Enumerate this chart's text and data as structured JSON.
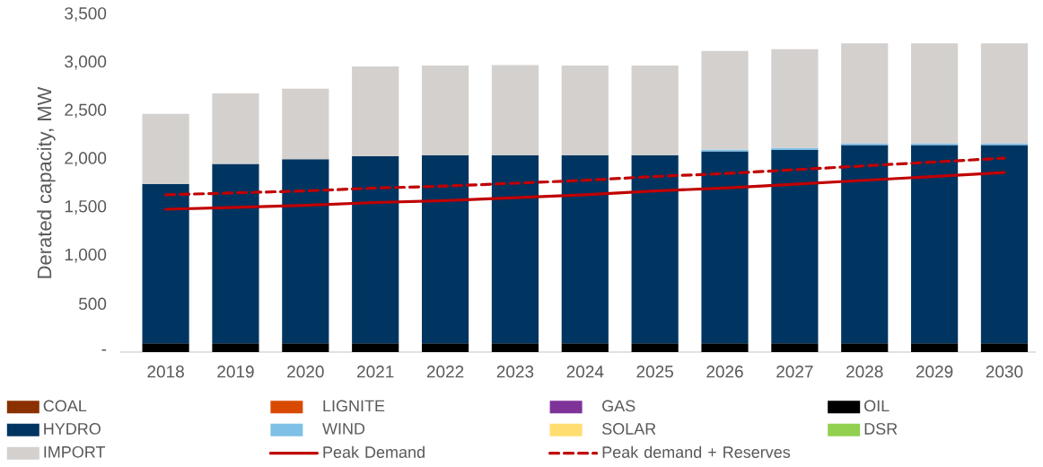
{
  "chart_data": {
    "type": "bar",
    "stacked": true,
    "ylabel": "Derated capacity, MW",
    "categories": [
      "2018",
      "2019",
      "2020",
      "2021",
      "2022",
      "2023",
      "2024",
      "2025",
      "2026",
      "2027",
      "2028",
      "2029",
      "2030"
    ],
    "ylim": [
      0,
      3500
    ],
    "yticks": [
      {
        "value": 0,
        "label": "-"
      },
      500,
      {
        "value": 1000,
        "label": "1,000"
      },
      {
        "value": 1500,
        "label": "1,500"
      },
      {
        "value": 2000,
        "label": "2,000"
      },
      {
        "value": 2500,
        "label": "2,500"
      },
      {
        "value": 3000,
        "label": "3,000"
      },
      {
        "value": 3500,
        "label": "3,500"
      }
    ],
    "legend": "bottom",
    "series": [
      {
        "name": "COAL",
        "color": "#8b3000",
        "values": [
          0,
          0,
          0,
          0,
          0,
          0,
          0,
          0,
          0,
          0,
          0,
          0,
          0
        ]
      },
      {
        "name": "LIGNITE",
        "color": "#d84a00",
        "values": [
          0,
          0,
          0,
          0,
          0,
          0,
          0,
          0,
          0,
          0,
          0,
          0,
          0
        ]
      },
      {
        "name": "GAS",
        "color": "#7f3399",
        "values": [
          0,
          0,
          0,
          0,
          0,
          0,
          0,
          0,
          0,
          0,
          0,
          0,
          0
        ]
      },
      {
        "name": "OIL",
        "color": "#000000",
        "values": [
          90,
          90,
          90,
          90,
          90,
          90,
          90,
          90,
          90,
          90,
          90,
          90,
          90
        ]
      },
      {
        "name": "HYDRO",
        "color": "#003562",
        "values": [
          1650,
          1860,
          1910,
          1940,
          1950,
          1950,
          1950,
          1950,
          1990,
          2005,
          2055,
          2055,
          2055
        ]
      },
      {
        "name": "WIND",
        "color": "#7ec0e6",
        "values": [
          0,
          0,
          0,
          0,
          0,
          0,
          0,
          0,
          20,
          20,
          20,
          20,
          20
        ]
      },
      {
        "name": "SOLAR",
        "color": "#ffdd71",
        "values": [
          0,
          0,
          0,
          0,
          0,
          0,
          0,
          0,
          0,
          0,
          0,
          0,
          0
        ]
      },
      {
        "name": "DSR",
        "color": "#92d050",
        "values": [
          0,
          0,
          0,
          0,
          0,
          0,
          0,
          0,
          0,
          0,
          0,
          0,
          0
        ]
      },
      {
        "name": "IMPORT",
        "color": "#d3d0ce",
        "values": [
          730,
          730,
          730,
          930,
          930,
          935,
          930,
          930,
          1020,
          1025,
          1035,
          1035,
          1035
        ]
      },
      {
        "name": "Peak Demand",
        "type": "line",
        "line_style": "solid",
        "color": "#c00000",
        "values": [
          1480,
          1500,
          1520,
          1550,
          1570,
          1600,
          1630,
          1670,
          1700,
          1740,
          1780,
          1820,
          1860
        ]
      },
      {
        "name": "Peak demand + Reserves",
        "type": "line",
        "line_style": "dashed",
        "color": "#c00000",
        "values": [
          1630,
          1650,
          1670,
          1700,
          1720,
          1750,
          1780,
          1820,
          1850,
          1890,
          1930,
          1970,
          2010
        ]
      }
    ]
  }
}
